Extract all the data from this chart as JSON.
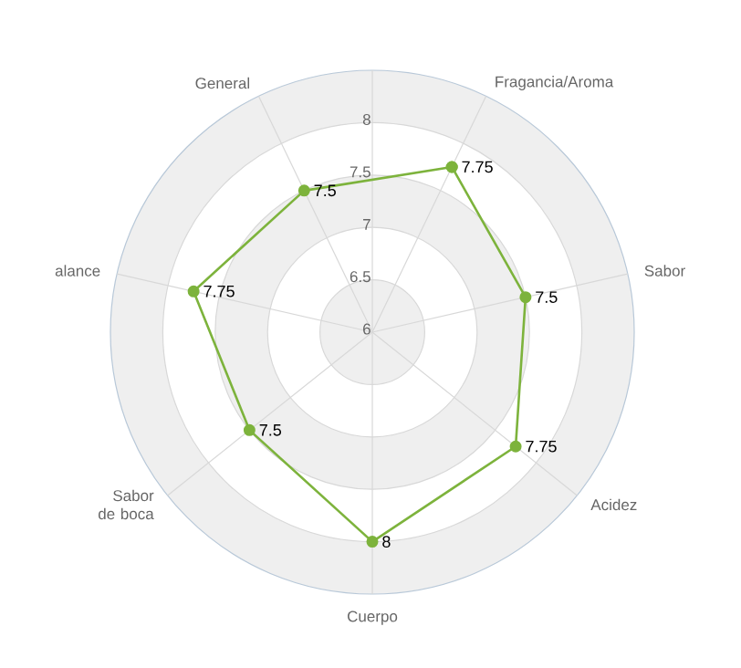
{
  "chart_data": {
    "type": "radar",
    "categories": [
      "Fragancia/Aroma",
      "Sabor",
      "Acidez",
      "Cuerpo",
      "Sabor de boca",
      "alance",
      "General"
    ],
    "series": [
      {
        "color": "#7db33c",
        "values": [
          7.75,
          7.5,
          7.75,
          8,
          7.5,
          7.75,
          7.5
        ]
      }
    ],
    "ylim": [
      6,
      8.5
    ],
    "yticks": [
      {
        "value": 6,
        "label": "6"
      },
      {
        "value": 6.5,
        "label": "6.5"
      },
      {
        "value": 7,
        "label": "7"
      },
      {
        "value": 7.5,
        "label": "7.5"
      },
      {
        "value": 8,
        "label": "8"
      }
    ],
    "grid": true,
    "marker": "circle",
    "data_labels": true
  }
}
